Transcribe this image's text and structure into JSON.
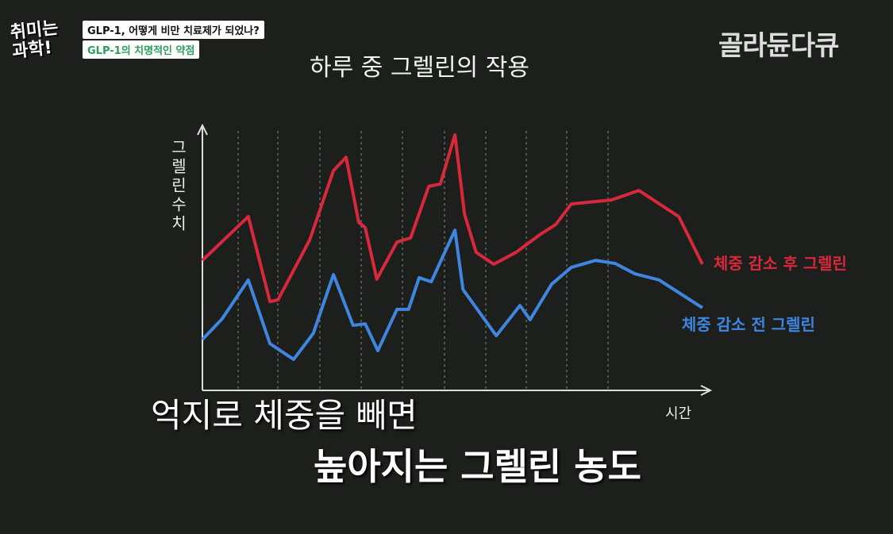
{
  "show": {
    "logo": "취미는 과학!",
    "episode_title": "GLP-1, 어떻게 비만 치료제가 되었나?",
    "segment_title": "GLP-1의 치명적인 약점",
    "channel": "골라듄다큐"
  },
  "chart_data": {
    "type": "line",
    "title": "하루 중 그렐린의 작용",
    "y_label": "그렐린수치",
    "x_label": "시간",
    "xlim": [
      0,
      100
    ],
    "ylim": [
      0,
      100
    ],
    "series": [
      {
        "name": "체중 감소 후 그렐린",
        "color": "#d8283c",
        "x": [
          0,
          9.1,
          13.4,
          15.0,
          21.3,
          26.0,
          28.5,
          31.0,
          32.3,
          34.6,
          38.6,
          41.3,
          44.9,
          47.2,
          50.1,
          52.0,
          54.3,
          57.8,
          62.2,
          66.9,
          70.1,
          73.2,
          81.1,
          86.6,
          94.5,
          99.2
        ],
        "values": [
          49.8,
          66.8,
          33.8,
          34.5,
          57.8,
          84.6,
          89.8,
          64.6,
          62.5,
          42.5,
          56.9,
          58.5,
          78.5,
          79.4,
          98.5,
          67.7,
          52.9,
          48.3,
          52.9,
          59.7,
          63.7,
          71.7,
          73.2,
          76.9,
          66.8,
          48.3
        ]
      },
      {
        "name": "체중 감소 전 그렐린",
        "color": "#3f86e0",
        "x": [
          0,
          3.9,
          9.1,
          13.4,
          18.1,
          22.0,
          26.0,
          29.9,
          32.3,
          34.8,
          38.6,
          40.9,
          43.0,
          45.4,
          50.1,
          51.7,
          58.3,
          63.0,
          65.0,
          69.3,
          73.2,
          78.0,
          81.9,
          85.8,
          90.6,
          99.2
        ],
        "values": [
          19.1,
          27.1,
          42.2,
          17.5,
          11.4,
          21.5,
          44.3,
          24.6,
          25.2,
          14.8,
          30.8,
          30.8,
          43.1,
          41.5,
          61.5,
          38.5,
          20.6,
          32.3,
          26.8,
          40.6,
          47.1,
          49.8,
          48.6,
          44.6,
          42.2,
          31.4
        ]
      }
    ]
  },
  "captions": [
    "억지로 체중을 빼면",
    "높아지는 그렐린 농도"
  ]
}
